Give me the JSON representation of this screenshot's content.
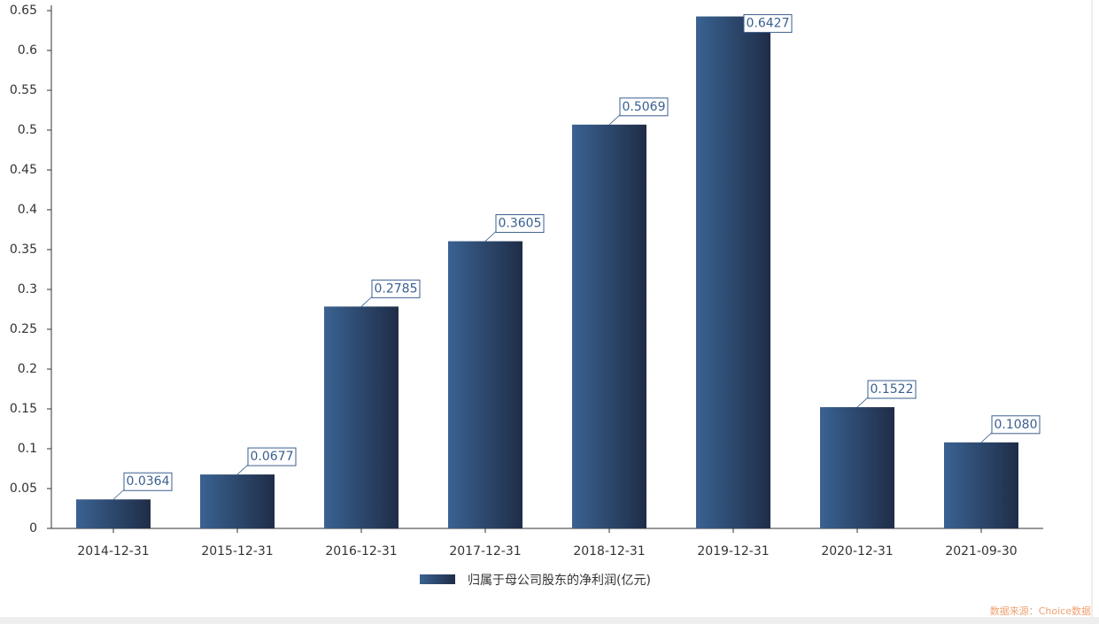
{
  "chart_data": {
    "type": "bar",
    "categories": [
      "2014-12-31",
      "2015-12-31",
      "2016-12-31",
      "2017-12-31",
      "2018-12-31",
      "2019-12-31",
      "2020-12-31",
      "2021-09-30"
    ],
    "series": [
      {
        "name": "归属于母公司股东的净利润(亿元)",
        "color": "#3a6292",
        "values": [
          0.0364,
          0.0677,
          0.2785,
          0.3605,
          0.5069,
          0.6427,
          0.1522,
          0.108
        ],
        "value_labels": [
          "0.0364",
          "0.0677",
          "0.2785",
          "0.3605",
          "0.5069",
          "0.6427",
          "0.1522",
          "0.1080"
        ]
      }
    ],
    "ylim": [
      0,
      0.65
    ],
    "yticks": [
      0,
      0.05,
      0.1,
      0.15,
      0.2,
      0.25,
      0.3,
      0.35,
      0.4,
      0.45,
      0.5,
      0.55,
      0.6,
      0.65
    ],
    "source": "数据来源：Choice数据"
  }
}
